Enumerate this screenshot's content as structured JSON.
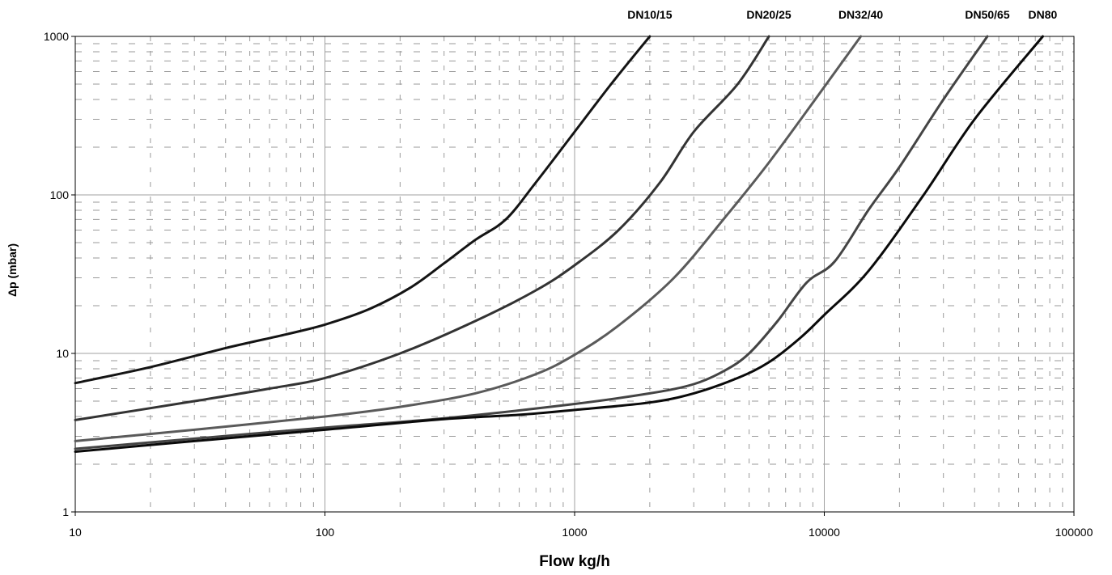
{
  "chart_data": {
    "type": "line",
    "xlabel": "Flow kg/h",
    "ylabel": "Δp (mbar)",
    "xscale": "log",
    "yscale": "log",
    "xlim": [
      10,
      100000
    ],
    "ylim": [
      1,
      1000
    ],
    "grid": "major solid, minor dashed",
    "x_ticks": [
      "10",
      "100",
      "1000",
      "10000",
      "100000"
    ],
    "y_ticks": [
      "1",
      "10",
      "100",
      "1000"
    ],
    "series": [
      {
        "name": "DN10/15",
        "color": "#141414",
        "points": [
          [
            10,
            6.5
          ],
          [
            20,
            8.2
          ],
          [
            40,
            10.8
          ],
          [
            70,
            13.2
          ],
          [
            100,
            15.2
          ],
          [
            150,
            19
          ],
          [
            220,
            26
          ],
          [
            300,
            37
          ],
          [
            400,
            52
          ],
          [
            530,
            70
          ],
          [
            700,
            120
          ],
          [
            1000,
            250
          ],
          [
            1400,
            500
          ],
          [
            2000,
            1000
          ]
        ]
      },
      {
        "name": "DN20/25",
        "color": "#333333",
        "points": [
          [
            10,
            3.8
          ],
          [
            30,
            5
          ],
          [
            60,
            6
          ],
          [
            100,
            7
          ],
          [
            200,
            10
          ],
          [
            400,
            16
          ],
          [
            700,
            25
          ],
          [
            1000,
            36
          ],
          [
            1500,
            60
          ],
          [
            2200,
            120
          ],
          [
            3000,
            250
          ],
          [
            4500,
            500
          ],
          [
            6000,
            1000
          ]
        ]
      },
      {
        "name": "DN32/40",
        "color": "#5a5a5a",
        "points": [
          [
            10,
            2.8
          ],
          [
            30,
            3.3
          ],
          [
            100,
            4
          ],
          [
            200,
            4.6
          ],
          [
            400,
            5.6
          ],
          [
            700,
            7.4
          ],
          [
            1000,
            9.8
          ],
          [
            1500,
            15
          ],
          [
            2500,
            30
          ],
          [
            4000,
            72
          ],
          [
            6000,
            160
          ],
          [
            10000,
            480
          ],
          [
            14000,
            1000
          ]
        ]
      },
      {
        "name": "DN50/65",
        "color": "#444444",
        "points": [
          [
            10,
            2.5
          ],
          [
            30,
            2.9
          ],
          [
            100,
            3.4
          ],
          [
            300,
            3.9
          ],
          [
            1000,
            4.8
          ],
          [
            2000,
            5.6
          ],
          [
            3000,
            6.4
          ],
          [
            4000,
            7.8
          ],
          [
            5000,
            10
          ],
          [
            6500,
            16
          ],
          [
            8500,
            28
          ],
          [
            11000,
            38
          ],
          [
            15000,
            80
          ],
          [
            20000,
            150
          ],
          [
            30000,
            400
          ],
          [
            45000,
            1000
          ]
        ]
      },
      {
        "name": "DN80",
        "color": "#0a0a0a",
        "points": [
          [
            10,
            2.4
          ],
          [
            30,
            2.8
          ],
          [
            100,
            3.3
          ],
          [
            300,
            3.85
          ],
          [
            600,
            4.1
          ],
          [
            1000,
            4.4
          ],
          [
            2000,
            4.9
          ],
          [
            3000,
            5.6
          ],
          [
            4500,
            7
          ],
          [
            6000,
            8.8
          ],
          [
            8000,
            12.5
          ],
          [
            10000,
            17.5
          ],
          [
            15000,
            33
          ],
          [
            25000,
            100
          ],
          [
            40000,
            300
          ],
          [
            75000,
            1000
          ]
        ]
      }
    ]
  }
}
